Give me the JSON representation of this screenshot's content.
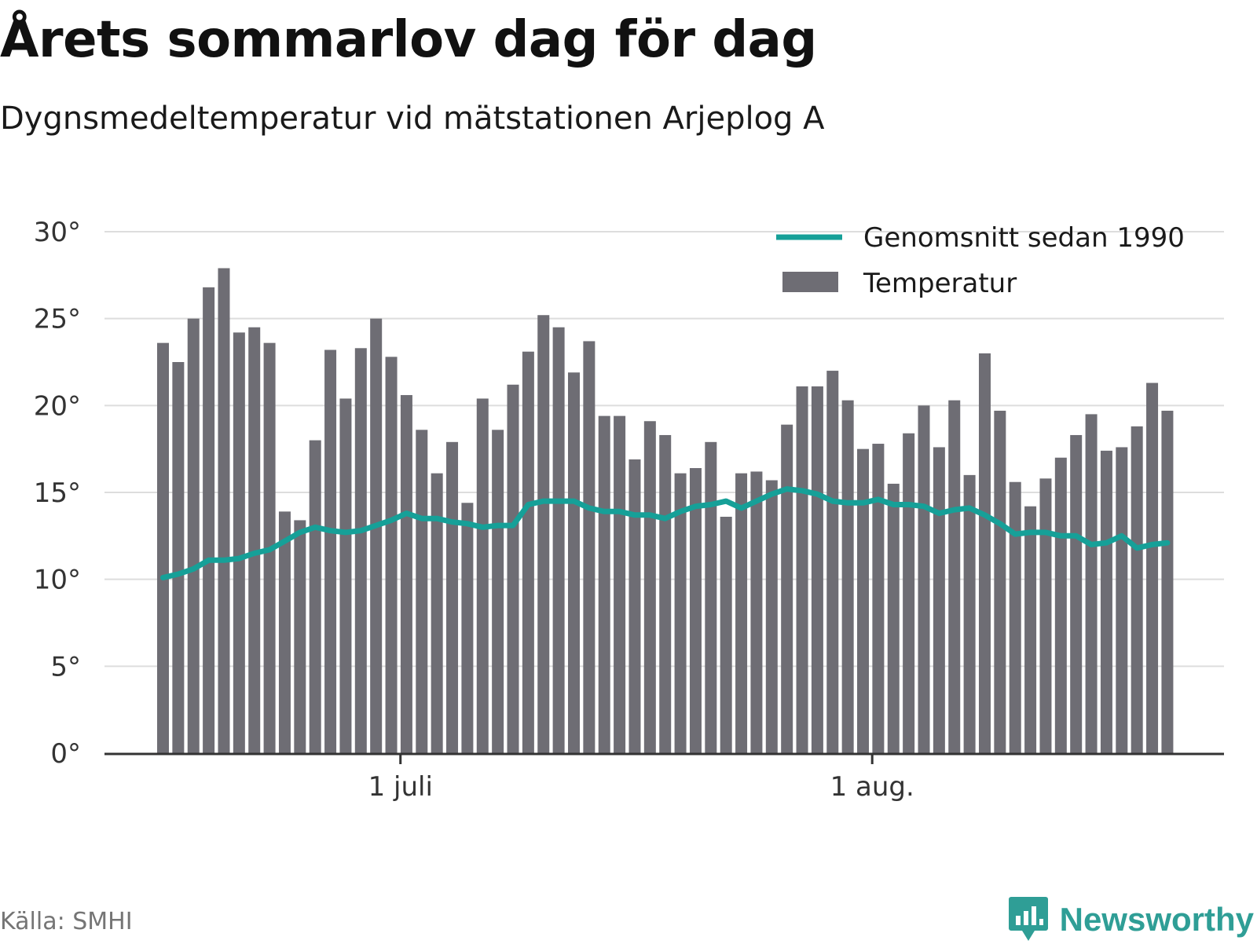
{
  "title": "Årets sommarlov dag för dag",
  "subtitle": "Dygnsmedeltemperatur vid mätstationen Arjeplog A",
  "source": "Källa: SMHI",
  "brand": "Newsworthy",
  "colors": {
    "bars": "#6e6d74",
    "line": "#16a098",
    "grid": "#dddddd",
    "axis": "#333333",
    "brand": "#2f9e96"
  },
  "chart_data": {
    "type": "bar",
    "y_tick_labels": [
      "0°",
      "5°",
      "10°",
      "15°",
      "20°",
      "25°",
      "30°"
    ],
    "y_ticks": [
      0,
      5,
      10,
      15,
      20,
      25,
      30
    ],
    "ylim": [
      0,
      30
    ],
    "x_tick_labels": [
      {
        "label": "1 juli",
        "index": 16
      },
      {
        "label": "1 aug.",
        "index": 47
      }
    ],
    "legend": {
      "position": "top-right",
      "line_label": "Genomsnitt sedan 1990",
      "bar_label": "Temperatur"
    },
    "grid": true,
    "bars": [
      23.6,
      22.5,
      25.0,
      26.8,
      27.9,
      24.2,
      24.5,
      23.6,
      13.9,
      13.4,
      18.0,
      23.2,
      20.4,
      23.3,
      25.0,
      22.8,
      20.6,
      18.6,
      16.1,
      17.9,
      14.4,
      20.4,
      18.6,
      21.2,
      23.1,
      25.2,
      24.5,
      21.9,
      23.7,
      19.4,
      19.4,
      16.9,
      19.1,
      18.3,
      16.1,
      16.4,
      17.9,
      13.6,
      16.1,
      16.2,
      15.7,
      18.9,
      21.1,
      21.1,
      22.0,
      20.3,
      17.5,
      17.8,
      15.5,
      18.4,
      20.0,
      17.6,
      20.3,
      16.0,
      23.0,
      19.7,
      15.6,
      14.2,
      15.8,
      17.0,
      18.3,
      19.5,
      17.4,
      17.6,
      18.8,
      21.3,
      19.7
    ],
    "average": [
      10.1,
      10.3,
      10.6,
      11.1,
      11.1,
      11.2,
      11.5,
      11.7,
      12.2,
      12.7,
      13.0,
      12.8,
      12.7,
      12.8,
      13.1,
      13.4,
      13.8,
      13.5,
      13.5,
      13.3,
      13.2,
      13.0,
      13.1,
      13.1,
      14.3,
      14.5,
      14.5,
      14.5,
      14.1,
      13.9,
      13.9,
      13.7,
      13.7,
      13.5,
      13.9,
      14.2,
      14.3,
      14.5,
      14.1,
      14.5,
      14.9,
      15.2,
      15.1,
      14.9,
      14.5,
      14.4,
      14.4,
      14.6,
      14.3,
      14.3,
      14.2,
      13.8,
      14.0,
      14.1,
      13.7,
      13.2,
      12.6,
      12.7,
      12.7,
      12.5,
      12.5,
      12.0,
      12.1,
      12.5,
      11.8,
      12.0,
      12.1
    ]
  }
}
